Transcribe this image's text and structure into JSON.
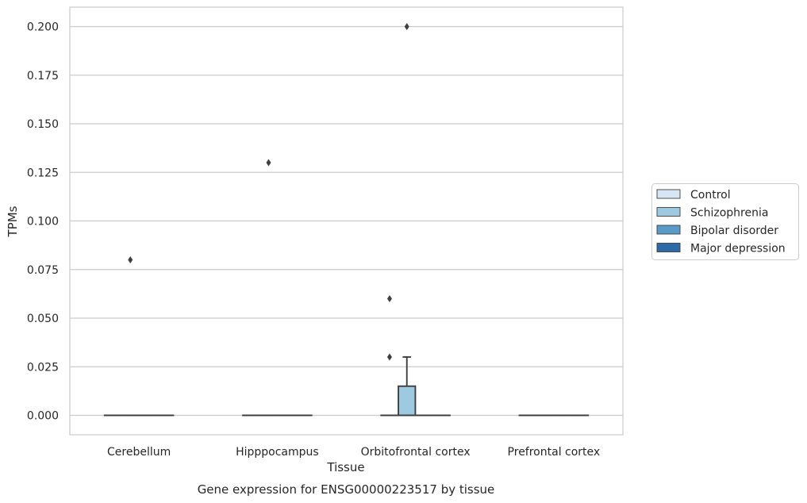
{
  "chart_data": {
    "type": "box",
    "title": "",
    "caption": "Gene expression for ENSG00000223517 by tissue",
    "xlabel": "Tissue",
    "ylabel": "TPMs",
    "ylim": [
      -0.01,
      0.21
    ],
    "yticks": [
      0.0,
      0.025,
      0.05,
      0.075,
      0.1,
      0.125,
      0.15,
      0.175,
      0.2
    ],
    "ytick_labels": [
      "0.000",
      "0.025",
      "0.050",
      "0.075",
      "0.100",
      "0.125",
      "0.150",
      "0.175",
      "0.200"
    ],
    "categories": [
      "Cerebellum",
      "Hipppocampus",
      "Orbitofrontal cortex",
      "Prefrontal cortex"
    ],
    "grid": "horizontal",
    "legend_position": "right",
    "series": [
      {
        "name": "Control",
        "color": "#d6e6f4",
        "boxes": [
          {
            "q1": 0,
            "median": 0,
            "q3": 0,
            "whisker_low": 0,
            "whisker_high": 0,
            "outliers": []
          },
          {
            "q1": 0,
            "median": 0,
            "q3": 0,
            "whisker_low": 0,
            "whisker_high": 0,
            "outliers": []
          },
          {
            "q1": 0,
            "median": 0,
            "q3": 0,
            "whisker_low": 0,
            "whisker_high": 0,
            "outliers": [
              0.03,
              0.06
            ]
          },
          {
            "q1": 0,
            "median": 0,
            "q3": 0,
            "whisker_low": 0,
            "whisker_high": 0,
            "outliers": []
          }
        ]
      },
      {
        "name": "Schizophrenia",
        "color": "#9ecae1",
        "boxes": [
          {
            "q1": 0,
            "median": 0,
            "q3": 0,
            "whisker_low": 0,
            "whisker_high": 0,
            "outliers": [
              0.08
            ]
          },
          {
            "q1": 0,
            "median": 0,
            "q3": 0,
            "whisker_low": 0,
            "whisker_high": 0,
            "outliers": [
              0.13
            ]
          },
          {
            "q1": 0,
            "median": 0,
            "q3": 0.015,
            "whisker_low": 0,
            "whisker_high": 0.03,
            "outliers": [
              0.2
            ]
          },
          {
            "q1": 0,
            "median": 0,
            "q3": 0,
            "whisker_low": 0,
            "whisker_high": 0,
            "outliers": []
          }
        ]
      },
      {
        "name": "Bipolar disorder",
        "color": "#5a9ac6",
        "boxes": [
          {
            "q1": 0,
            "median": 0,
            "q3": 0,
            "whisker_low": 0,
            "whisker_high": 0,
            "outliers": []
          },
          {
            "q1": 0,
            "median": 0,
            "q3": 0,
            "whisker_low": 0,
            "whisker_high": 0,
            "outliers": []
          },
          {
            "q1": 0,
            "median": 0,
            "q3": 0,
            "whisker_low": 0,
            "whisker_high": 0,
            "outliers": []
          },
          {
            "q1": 0,
            "median": 0,
            "q3": 0,
            "whisker_low": 0,
            "whisker_high": 0,
            "outliers": []
          }
        ]
      },
      {
        "name": "Major depression",
        "color": "#2c6ba8",
        "boxes": [
          {
            "q1": 0,
            "median": 0,
            "q3": 0,
            "whisker_low": 0,
            "whisker_high": 0,
            "outliers": []
          },
          {
            "q1": 0,
            "median": 0,
            "q3": 0,
            "whisker_low": 0,
            "whisker_high": 0,
            "outliers": []
          },
          {
            "q1": 0,
            "median": 0,
            "q3": 0,
            "whisker_low": 0,
            "whisker_high": 0,
            "outliers": []
          },
          {
            "q1": 0,
            "median": 0,
            "q3": 0,
            "whisker_low": 0,
            "whisker_high": 0,
            "outliers": []
          }
        ]
      }
    ]
  }
}
